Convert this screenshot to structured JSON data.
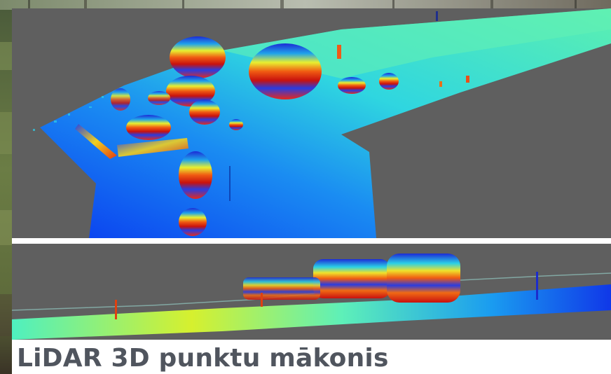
{
  "caption": "LiDAR 3D punktu mākonis",
  "colors": {
    "background_gray": "#5f5f5f",
    "caption_text": "#50555e",
    "divider": "#ffffff"
  },
  "icons": {
    "top_view": "lidar-top-view-image",
    "side_view": "lidar-side-view-image",
    "background": "forest-photo-background"
  }
}
